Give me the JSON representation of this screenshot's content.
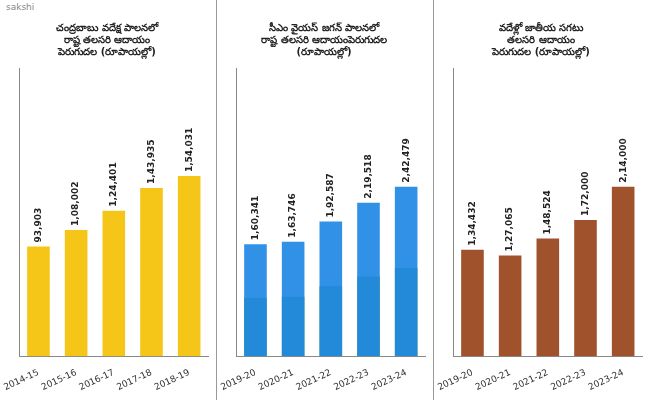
{
  "chart_data": [
    {
      "type": "bar",
      "title": [
        "చంద్రబాబు వదేక్ష పాలనలో",
        "రాష్ట తలసరి ఆదాయం",
        "పెరుగుదల (రూపాయల్లో)"
      ],
      "categories": [
        "2014-15",
        "2015-16",
        "2016-17",
        "2017-18",
        "2018-19"
      ],
      "values": [
        93903,
        108002,
        124401,
        143935,
        154031
      ],
      "value_labels": [
        "93,903",
        "1,08,002",
        "1,24,401",
        "1,43,935",
        "1,54,031"
      ],
      "color": "#F5C518",
      "ylim": [
        0,
        246449.6
      ],
      "grid": false,
      "data_labels": true,
      "tick_labels": "x",
      "annotations": [
        "sakshi"
      ]
    },
    {
      "type": "bar",
      "title": [
        "సీఎం వైయస్ జగన్ పాలనలో",
        "రాష్ట తలసరి ఆదాయంపెరుగుదల",
        "(రూపాయల్లో)"
      ],
      "categories": [
        "2019-20",
        "2020-21",
        "2021-22",
        "2022-23",
        "2023-24"
      ],
      "series": [
        {
          "color": "#43A047",
          "values": [
            83377.32,
            85147.92,
            100145.24,
            114149.36,
            126089.08
          ]
        },
        {
          "color": "#1E88E5",
          "values": [
            160341,
            163746,
            192587,
            219518,
            242479
          ],
          "value_labels": [
            "1,60,341",
            "1,63,746",
            "1,92,587",
            "2,19,518",
            "2,42,479"
          ]
        }
      ],
      "ylim": [
        0,
        412214.3
      ],
      "grid": false,
      "data_labels": true,
      "tick_labels": "x"
    },
    {
      "type": "bar",
      "title": [
        "వదేళ్లో జాతీయ సగటు",
        "తలసరి ఆదాయం",
        "పెరుగుదల (రూపాయల్లో)"
      ],
      "categories": [
        "2019-20",
        "2020-21",
        "2021-22",
        "2022-23",
        "2023-24"
      ],
      "values": [
        134432,
        127065,
        148524,
        172000,
        214000
      ],
      "value_labels": [
        "1,34,432",
        "1,27,065",
        "1,48,524",
        "1,72,000",
        "2,14,000"
      ],
      "color": "#A0522D",
      "ylim": [
        0,
        363800
      ],
      "grid": false,
      "data_labels": true,
      "tick_labels": "x"
    }
  ]
}
